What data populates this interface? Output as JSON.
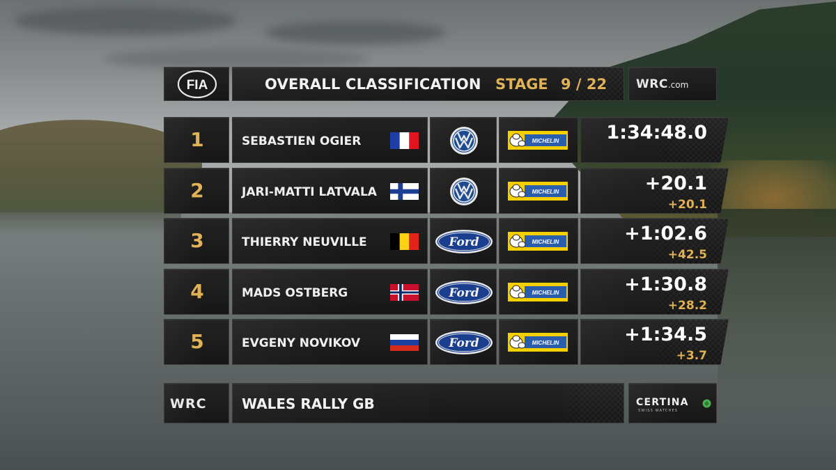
{
  "header": {
    "fia_logo_text": "FIA",
    "title": "OVERALL CLASSIFICATION",
    "stage_label": "STAGE",
    "stage_number": "9 / 22",
    "site_logo_text": "WRC",
    "site_logo_suffix": ".com"
  },
  "colors": {
    "accent_gold": "#e0b255",
    "panel_dark": "#1b1b1b",
    "text_white": "#f2f2f2"
  },
  "standings": [
    {
      "position": "1",
      "driver": "SEBASTIEN OGIER",
      "flag": "france-flag",
      "make": "volkswagen-logo",
      "tyre": "michelin-logo",
      "time": "1:34:48.0",
      "gap_prev": ""
    },
    {
      "position": "2",
      "driver": "JARI-MATTI LATVALA",
      "flag": "finland-flag",
      "make": "volkswagen-logo",
      "tyre": "michelin-logo",
      "time": "+20.1",
      "gap_prev": "+20.1"
    },
    {
      "position": "3",
      "driver": "THIERRY NEUVILLE",
      "flag": "belgium-flag",
      "make": "ford-logo",
      "tyre": "michelin-logo",
      "time": "+1:02.6",
      "gap_prev": "+42.5"
    },
    {
      "position": "4",
      "driver": "MADS OSTBERG",
      "flag": "norway-flag",
      "make": "ford-logo",
      "tyre": "michelin-logo",
      "time": "+1:30.8",
      "gap_prev": "+28.2"
    },
    {
      "position": "5",
      "driver": "EVGENY NOVIKOV",
      "flag": "russia-flag",
      "make": "ford-logo",
      "tyre": "michelin-logo",
      "time": "+1:34.5",
      "gap_prev": "+3.7"
    }
  ],
  "brands": {
    "vw_text": "VW",
    "ford_text": "Ford",
    "michelin_text": "MICHELIN"
  },
  "footer": {
    "series_logo_text": "WRC",
    "event_name": "WALES RALLY GB",
    "sponsor_name": "CERTINA",
    "sponsor_tagline": "SWISS WATCHES"
  }
}
